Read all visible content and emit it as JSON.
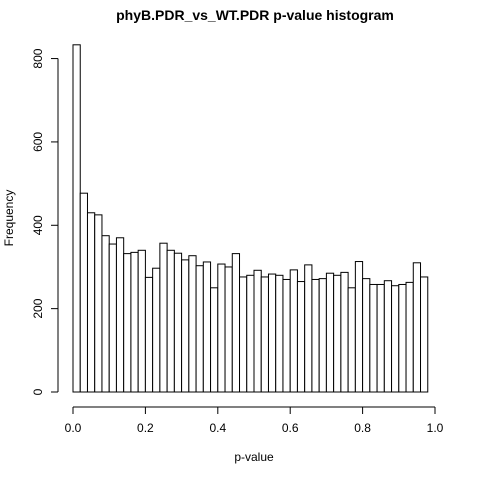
{
  "chart_data": {
    "type": "bar",
    "title": "phyB.PDR_vs_WT.PDR p-value histogram",
    "xlabel": "p-value",
    "ylabel": "Frequency",
    "xlim": [
      0,
      1
    ],
    "ylim": [
      0,
      850
    ],
    "bin_width": 0.02,
    "x_ticks": [
      "0.0",
      "0.2",
      "0.4",
      "0.6",
      "0.8",
      "1.0"
    ],
    "x_tick_values": [
      0,
      0.2,
      0.4,
      0.6,
      0.8,
      1.0
    ],
    "y_ticks": [
      "0",
      "200",
      "400",
      "600",
      "800"
    ],
    "y_tick_values": [
      0,
      200,
      400,
      600,
      800
    ],
    "values": [
      833,
      477,
      430,
      425,
      375,
      355,
      370,
      332,
      335,
      340,
      275,
      297,
      357,
      340,
      333,
      317,
      327,
      303,
      312,
      250,
      307,
      300,
      332,
      276,
      280,
      292,
      276,
      283,
      280,
      270,
      293,
      265,
      305,
      270,
      272,
      285,
      280,
      287,
      250,
      313,
      272,
      258,
      258,
      267,
      255,
      258,
      263,
      310,
      276
    ],
    "bar_fill": "#ffffff",
    "bar_stroke": "#000000",
    "grid": false
  }
}
